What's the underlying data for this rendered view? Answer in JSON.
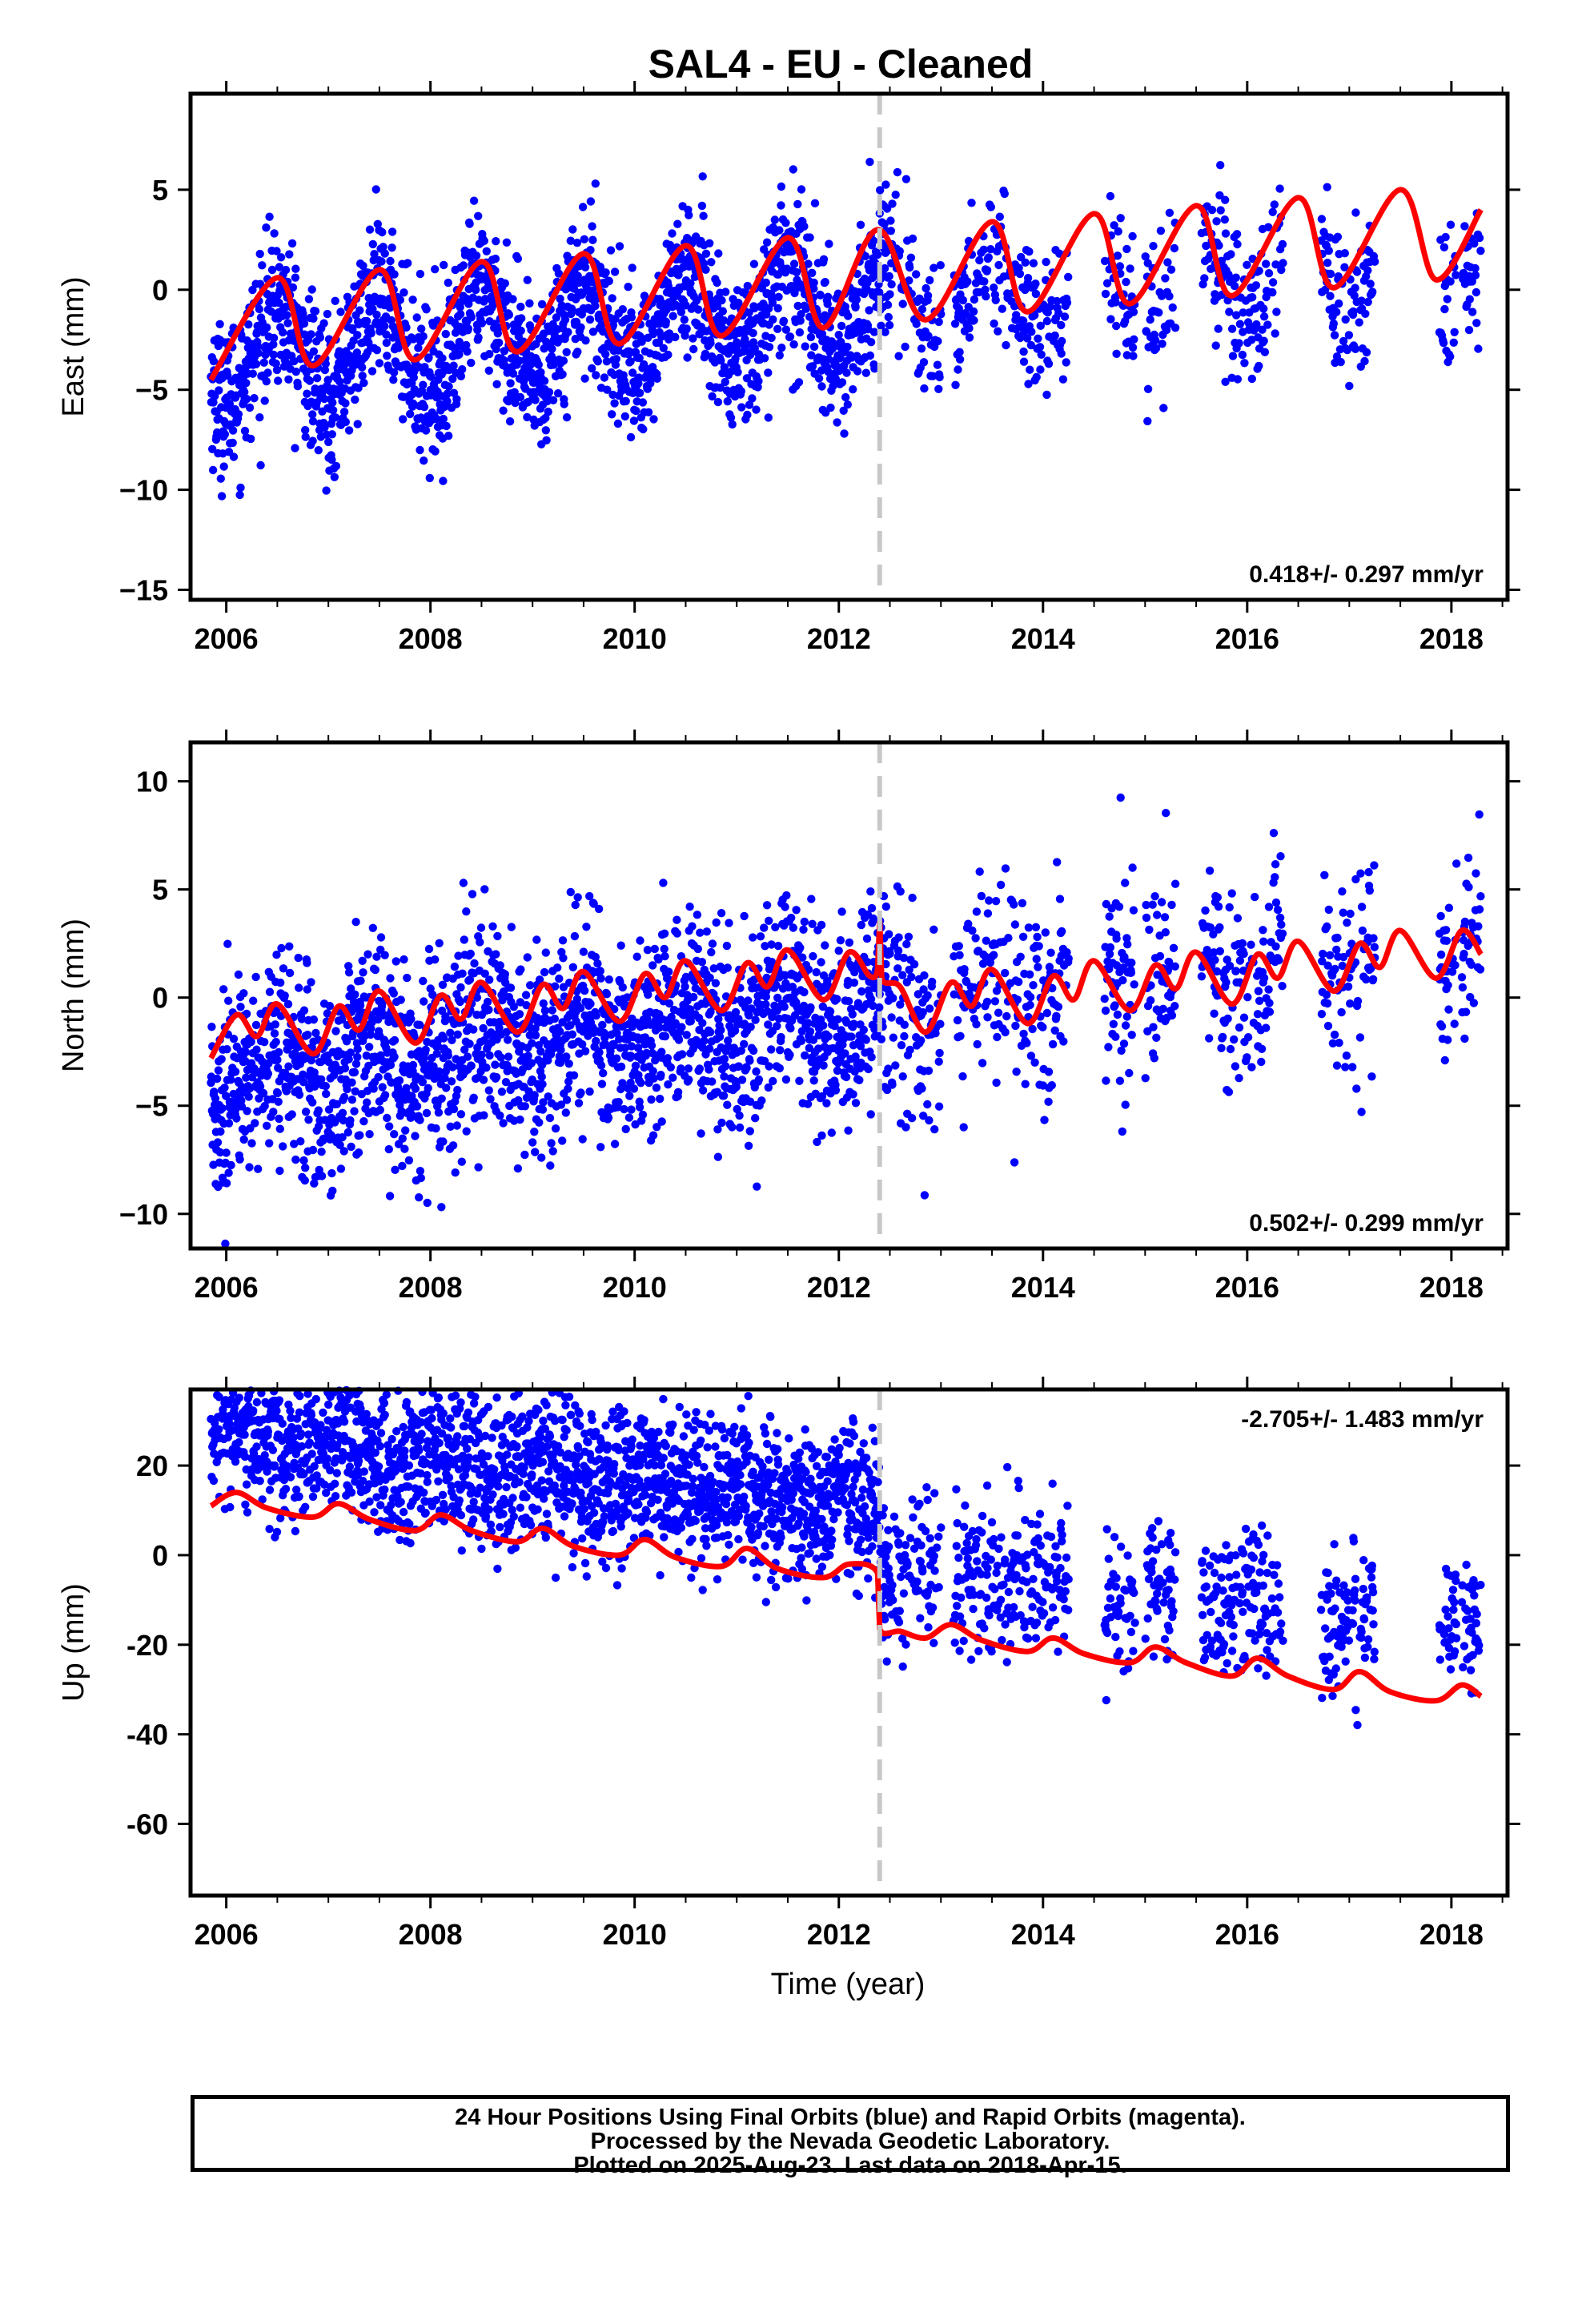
{
  "title": "SAL4  - EU - Cleaned",
  "xlabel": "Time (year)",
  "caption": [
    "24 Hour Positions Using Final Orbits (blue) and Rapid Orbits (magenta).",
    "Processed by the Nevada Geodetic Laboratory.",
    "Plotted on 2025-Aug-23. Last data on 2018-Apr-15."
  ],
  "colors": {
    "points": "#0000ff",
    "fit": "#ff0000",
    "step_line": "#c8c8c8",
    "frame": "#000000"
  },
  "chart_data": [
    {
      "type": "scatter",
      "panel": "east",
      "ylabel": "East (mm)",
      "rate_text": "0.418+/- 0.297 mm/yr",
      "xlim": [
        2005.65,
        2018.55
      ],
      "ylim": [
        -15.5,
        9.8
      ],
      "xticks": [
        2006,
        2008,
        2010,
        2012,
        2014,
        2016,
        2018
      ],
      "yticks": [
        5,
        0,
        -5,
        -10,
        -15
      ],
      "ytick_labels": [
        "5",
        "0",
        "−5",
        "−10",
        "−15"
      ],
      "data_start": 2005.85,
      "data_end": 2018.29,
      "step_epoch": 2012.4,
      "grid": false,
      "series": [
        {
          "name": "Final Orbits",
          "color": "#0000ff",
          "model": {
            "offset": -0.9,
            "slope": 0.418,
            "annual_amp": 2.2,
            "annual_peak": 0.5,
            "scatter": 1.9
          }
        },
        {
          "color": "#ff0000",
          "fit_points": [
            [
              2005.85,
              -4.5
            ],
            [
              2006.5,
              0.6
            ],
            [
              2006.85,
              -3.8
            ],
            [
              2007.5,
              1.0
            ],
            [
              2007.85,
              -3.5
            ],
            [
              2008.5,
              1.4
            ],
            [
              2008.85,
              -3.1
            ],
            [
              2009.5,
              1.8
            ],
            [
              2009.85,
              -2.7
            ],
            [
              2010.5,
              2.2
            ],
            [
              2010.85,
              -2.3
            ],
            [
              2011.5,
              2.6
            ],
            [
              2011.85,
              -1.9
            ],
            [
              2012.38,
              3.0
            ],
            [
              2012.85,
              -1.5
            ],
            [
              2013.5,
              3.4
            ],
            [
              2013.85,
              -1.1
            ],
            [
              2014.5,
              3.8
            ],
            [
              2014.85,
              -0.7
            ],
            [
              2015.5,
              4.2
            ],
            [
              2015.85,
              -0.3
            ],
            [
              2016.5,
              4.6
            ],
            [
              2016.85,
              0.1
            ],
            [
              2017.5,
              5.0
            ],
            [
              2017.85,
              0.5
            ],
            [
              2018.29,
              4.0
            ]
          ]
        }
      ]
    },
    {
      "type": "scatter",
      "panel": "north",
      "ylabel": "North (mm)",
      "rate_text": "0.502+/- 0.299 mm/yr",
      "xlim": [
        2005.65,
        2018.55
      ],
      "ylim": [
        -11.6,
        11.8
      ],
      "xticks": [
        2006,
        2008,
        2010,
        2012,
        2014,
        2016,
        2018
      ],
      "yticks": [
        10,
        5,
        0,
        -5,
        -10
      ],
      "ytick_labels": [
        "10",
        "5",
        "0",
        "−5",
        "−10"
      ],
      "data_start": 2005.85,
      "data_end": 2018.29,
      "step_epoch": 2012.4,
      "grid": false,
      "series": [
        {
          "name": "Final Orbits",
          "color": "#0000ff",
          "model": {
            "offset": -0.6,
            "slope": 0.502,
            "annual_amp": 1.1,
            "annual_peak": 0.45,
            "scatter": 2.3
          }
        },
        {
          "color": "#ff0000",
          "fit_points": [
            [
              2005.85,
              -2.8
            ],
            [
              2006.1,
              -0.8
            ],
            [
              2006.3,
              -1.8
            ],
            [
              2006.5,
              -0.3
            ],
            [
              2006.85,
              -2.6
            ],
            [
              2007.1,
              -0.4
            ],
            [
              2007.3,
              -1.5
            ],
            [
              2007.5,
              0.3
            ],
            [
              2007.85,
              -2.1
            ],
            [
              2008.1,
              0.1
            ],
            [
              2008.3,
              -1.0
            ],
            [
              2008.5,
              0.7
            ],
            [
              2008.85,
              -1.6
            ],
            [
              2009.1,
              0.6
            ],
            [
              2009.3,
              -0.5
            ],
            [
              2009.5,
              1.2
            ],
            [
              2009.85,
              -1.1
            ],
            [
              2010.1,
              1.1
            ],
            [
              2010.3,
              0.0
            ],
            [
              2010.5,
              1.7
            ],
            [
              2010.85,
              -0.6
            ],
            [
              2011.1,
              1.6
            ],
            [
              2011.3,
              0.5
            ],
            [
              2011.5,
              2.2
            ],
            [
              2011.85,
              -0.1
            ],
            [
              2012.1,
              2.1
            ],
            [
              2012.3,
              1.0
            ],
            [
              2012.38,
              1.3
            ],
            [
              2012.4,
              3.5
            ],
            [
              2012.42,
              0.9
            ],
            [
              2012.6,
              0.5
            ],
            [
              2012.85,
              -1.6
            ],
            [
              2013.1,
              0.7
            ],
            [
              2013.3,
              -0.4
            ],
            [
              2013.5,
              1.3
            ],
            [
              2013.85,
              -1.2
            ],
            [
              2014.1,
              1.0
            ],
            [
              2014.3,
              -0.1
            ],
            [
              2014.5,
              1.7
            ],
            [
              2014.85,
              -0.6
            ],
            [
              2015.1,
              1.5
            ],
            [
              2015.3,
              0.4
            ],
            [
              2015.5,
              2.1
            ],
            [
              2015.85,
              -0.3
            ],
            [
              2016.1,
              2.0
            ],
            [
              2016.3,
              0.9
            ],
            [
              2016.5,
              2.6
            ],
            [
              2016.85,
              0.3
            ],
            [
              2017.1,
              2.5
            ],
            [
              2017.3,
              1.4
            ],
            [
              2017.5,
              3.1
            ],
            [
              2017.85,
              0.9
            ],
            [
              2018.1,
              3.1
            ],
            [
              2018.29,
              2.0
            ]
          ]
        }
      ]
    },
    {
      "type": "scatter",
      "panel": "up",
      "ylabel": "Up (mm)",
      "rate_text": "-2.705+/- 1.483 mm/yr",
      "xlim": [
        2005.65,
        2018.55
      ],
      "ylim": [
        -76,
        37
      ],
      "xticks": [
        2006,
        2008,
        2010,
        2012,
        2014,
        2016,
        2018
      ],
      "yticks": [
        20,
        0,
        -20,
        -40,
        -60
      ],
      "ytick_labels": [
        "20",
        "0",
        "-20",
        "-40",
        "-60"
      ],
      "data_start": 2005.85,
      "data_end": 2018.29,
      "step_epoch": 2012.4,
      "grid": false,
      "series": [
        {
          "name": "Final Orbits",
          "color": "#0000ff",
          "model": {
            "offset": 11,
            "slope": -2.705,
            "annual_amp": 2.5,
            "annual_peak": 0.1,
            "scatter": 8.5,
            "step": -12.5
          }
        },
        {
          "color": "#ff0000",
          "fit_points": [
            [
              2005.85,
              11
            ],
            [
              2006.1,
              14
            ],
            [
              2006.4,
              10.5
            ],
            [
              2006.85,
              8.5
            ],
            [
              2007.1,
              11.5
            ],
            [
              2007.4,
              8
            ],
            [
              2007.85,
              5.5
            ],
            [
              2008.1,
              9
            ],
            [
              2008.4,
              5.5
            ],
            [
              2008.85,
              3
            ],
            [
              2009.1,
              6
            ],
            [
              2009.4,
              2
            ],
            [
              2009.85,
              0
            ],
            [
              2010.1,
              3.5
            ],
            [
              2010.4,
              -0.5
            ],
            [
              2010.85,
              -2.5
            ],
            [
              2011.1,
              1.5
            ],
            [
              2011.4,
              -3
            ],
            [
              2011.85,
              -5
            ],
            [
              2012.1,
              -2
            ],
            [
              2012.38,
              -4
            ],
            [
              2012.4,
              -16.5
            ],
            [
              2012.6,
              -17
            ],
            [
              2012.85,
              -18.5
            ],
            [
              2013.1,
              -15.5
            ],
            [
              2013.4,
              -19
            ],
            [
              2013.85,
              -21.5
            ],
            [
              2014.1,
              -18.5
            ],
            [
              2014.4,
              -22
            ],
            [
              2014.85,
              -24
            ],
            [
              2015.1,
              -20.5
            ],
            [
              2015.4,
              -24
            ],
            [
              2015.85,
              -27
            ],
            [
              2016.1,
              -23
            ],
            [
              2016.4,
              -27
            ],
            [
              2016.85,
              -30
            ],
            [
              2017.1,
              -26
            ],
            [
              2017.4,
              -30.5
            ],
            [
              2017.85,
              -32.5
            ],
            [
              2018.1,
              -29
            ],
            [
              2018.29,
              -31.5
            ]
          ]
        }
      ]
    }
  ]
}
